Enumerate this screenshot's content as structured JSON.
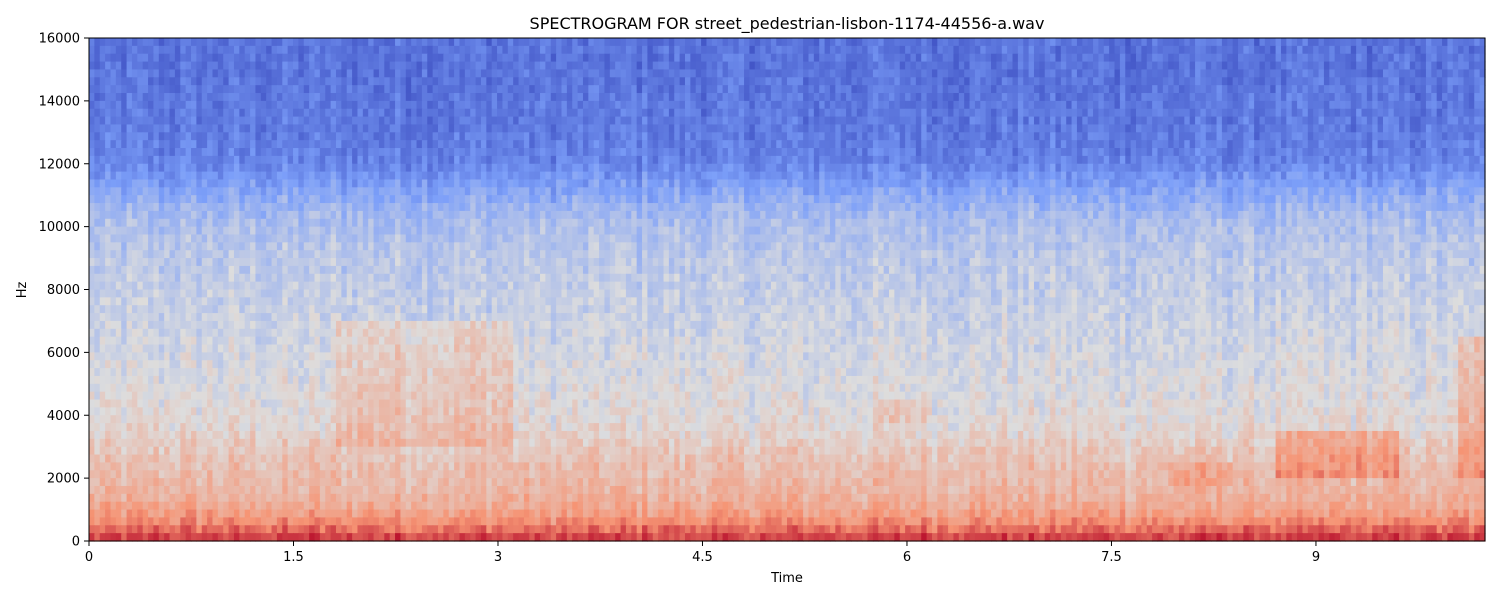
{
  "chart_data": {
    "type": "heatmap",
    "title": "SPECTROGRAM FOR street_pedestrian-lisbon-1174-44556-a.wav",
    "xlabel": "Time",
    "ylabel": "Hz",
    "xlim": [
      0,
      10.24
    ],
    "ylim": [
      0,
      16000
    ],
    "x_ticks": [
      0,
      1.5,
      3,
      4.5,
      6,
      7.5,
      9
    ],
    "x_tick_labels": [
      "0",
      "1.5",
      "3",
      "4.5",
      "6",
      "7.5",
      "9"
    ],
    "y_ticks": [
      0,
      2000,
      4000,
      6000,
      8000,
      10000,
      12000,
      14000,
      16000
    ],
    "y_tick_labels": [
      "0",
      "2000",
      "4000",
      "6000",
      "8000",
      "10000",
      "12000",
      "14000",
      "16000"
    ],
    "colormap": "coolwarm",
    "colors": {
      "low": "#3b4cc0",
      "mid": "#dddddd",
      "high": "#b40426"
    },
    "grid": false,
    "legend": "none",
    "intensity_profile": {
      "description": "relative level (0 = coolest, 1 = warmest) by frequency",
      "frequencies_hz": [
        0,
        300,
        600,
        1000,
        1500,
        2000,
        2500,
        3000,
        3500,
        4000,
        5000,
        6000,
        7000,
        8000,
        9000,
        10000,
        10500,
        11000,
        11500,
        12000,
        13000,
        14000,
        15000,
        16000
      ],
      "levels": [
        0.92,
        0.84,
        0.76,
        0.69,
        0.64,
        0.62,
        0.6,
        0.57,
        0.53,
        0.51,
        0.49,
        0.47,
        0.45,
        0.43,
        0.41,
        0.38,
        0.34,
        0.29,
        0.23,
        0.17,
        0.14,
        0.13,
        0.12,
        0.12
      ]
    },
    "warm_regions": [
      {
        "time_range": [
          1.8,
          3.1
        ],
        "freq_range": [
          3000,
          7000
        ],
        "boost": 0.09
      },
      {
        "time_range": [
          8.7,
          9.6
        ],
        "freq_range": [
          2000,
          3500
        ],
        "boost": 0.12
      },
      {
        "time_range": [
          10.05,
          10.24
        ],
        "freq_range": [
          2000,
          6500
        ],
        "boost": 0.12
      },
      {
        "time_range": [
          7.9,
          8.4
        ],
        "freq_range": [
          1800,
          2600
        ],
        "boost": 0.08
      },
      {
        "time_range": [
          5.8,
          6.2
        ],
        "freq_range": [
          3800,
          4600
        ],
        "boost": 0.06
      }
    ]
  }
}
